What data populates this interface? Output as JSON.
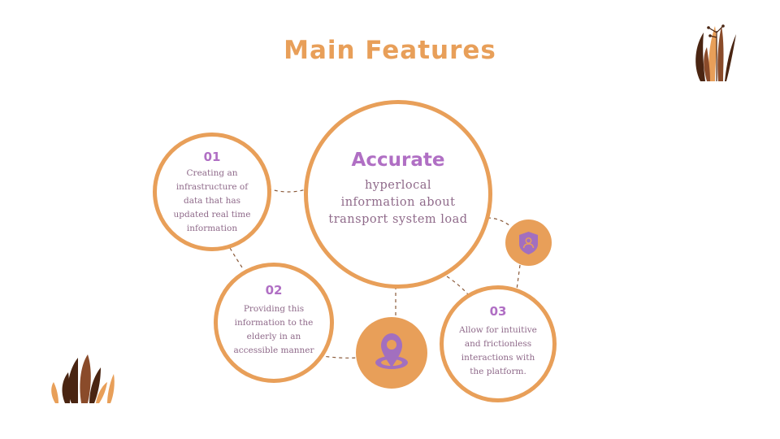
{
  "title": "Main Features",
  "center": {
    "heading": "Accurate",
    "lines": [
      "hyperlocal",
      "information about",
      "transport system load"
    ]
  },
  "features": [
    {
      "number": "01",
      "lines": [
        "Creating an",
        "infrastructure of",
        "data that has",
        "updated real time",
        "information"
      ]
    },
    {
      "number": "02",
      "lines": [
        "Providing this",
        "information to the",
        "elderly in an",
        "accessible manner"
      ]
    },
    {
      "number": "03",
      "lines": [
        "Allow for intuitive",
        "and frictionless",
        "interactions with",
        "the platform."
      ]
    }
  ],
  "icons": {
    "shield": "shield-user-icon",
    "location": "location-pin-icon"
  },
  "colors": {
    "accent": "#e89f59",
    "purple": "#b06fc4",
    "text": "#8f6a8a",
    "dark_brown": "#4a2512",
    "mid_brown": "#8a4b2a"
  }
}
